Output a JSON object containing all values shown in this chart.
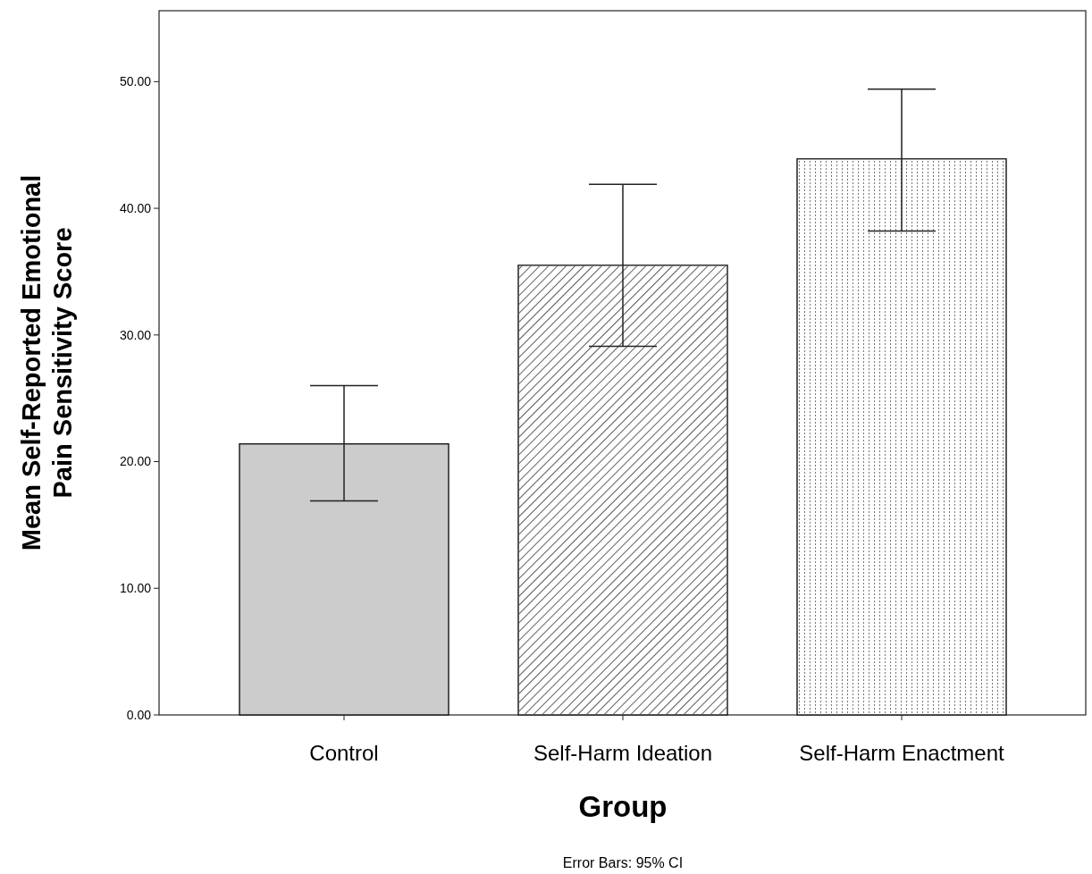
{
  "chart_data": {
    "type": "bar",
    "xlabel": "Group",
    "ylabel": "Mean Self-Reported Emotional Pain Sensitivity Score",
    "categories": [
      "Control",
      "Self-Harm Ideation",
      "Self-Harm Enactment"
    ],
    "values": [
      21.4,
      35.5,
      43.9
    ],
    "colors": [
      "#cccccc",
      "#ffffff",
      "#ffffff"
    ],
    "errors": [
      [
        16.9,
        26.0
      ],
      [
        29.1,
        41.9
      ],
      [
        38.2,
        49.4
      ]
    ],
    "ylim": [
      0,
      55.6
    ],
    "yticks": [
      {
        "value": 0,
        "label": "0.00"
      },
      {
        "value": 10,
        "label": "10.00"
      },
      {
        "value": 20,
        "label": "20.00"
      },
      {
        "value": 30,
        "label": "30.00"
      },
      {
        "value": 40,
        "label": "40.00"
      },
      {
        "value": 50,
        "label": "50.00"
      }
    ],
    "grid": false,
    "annotations": [
      "Error Bars: 95% CI"
    ]
  }
}
